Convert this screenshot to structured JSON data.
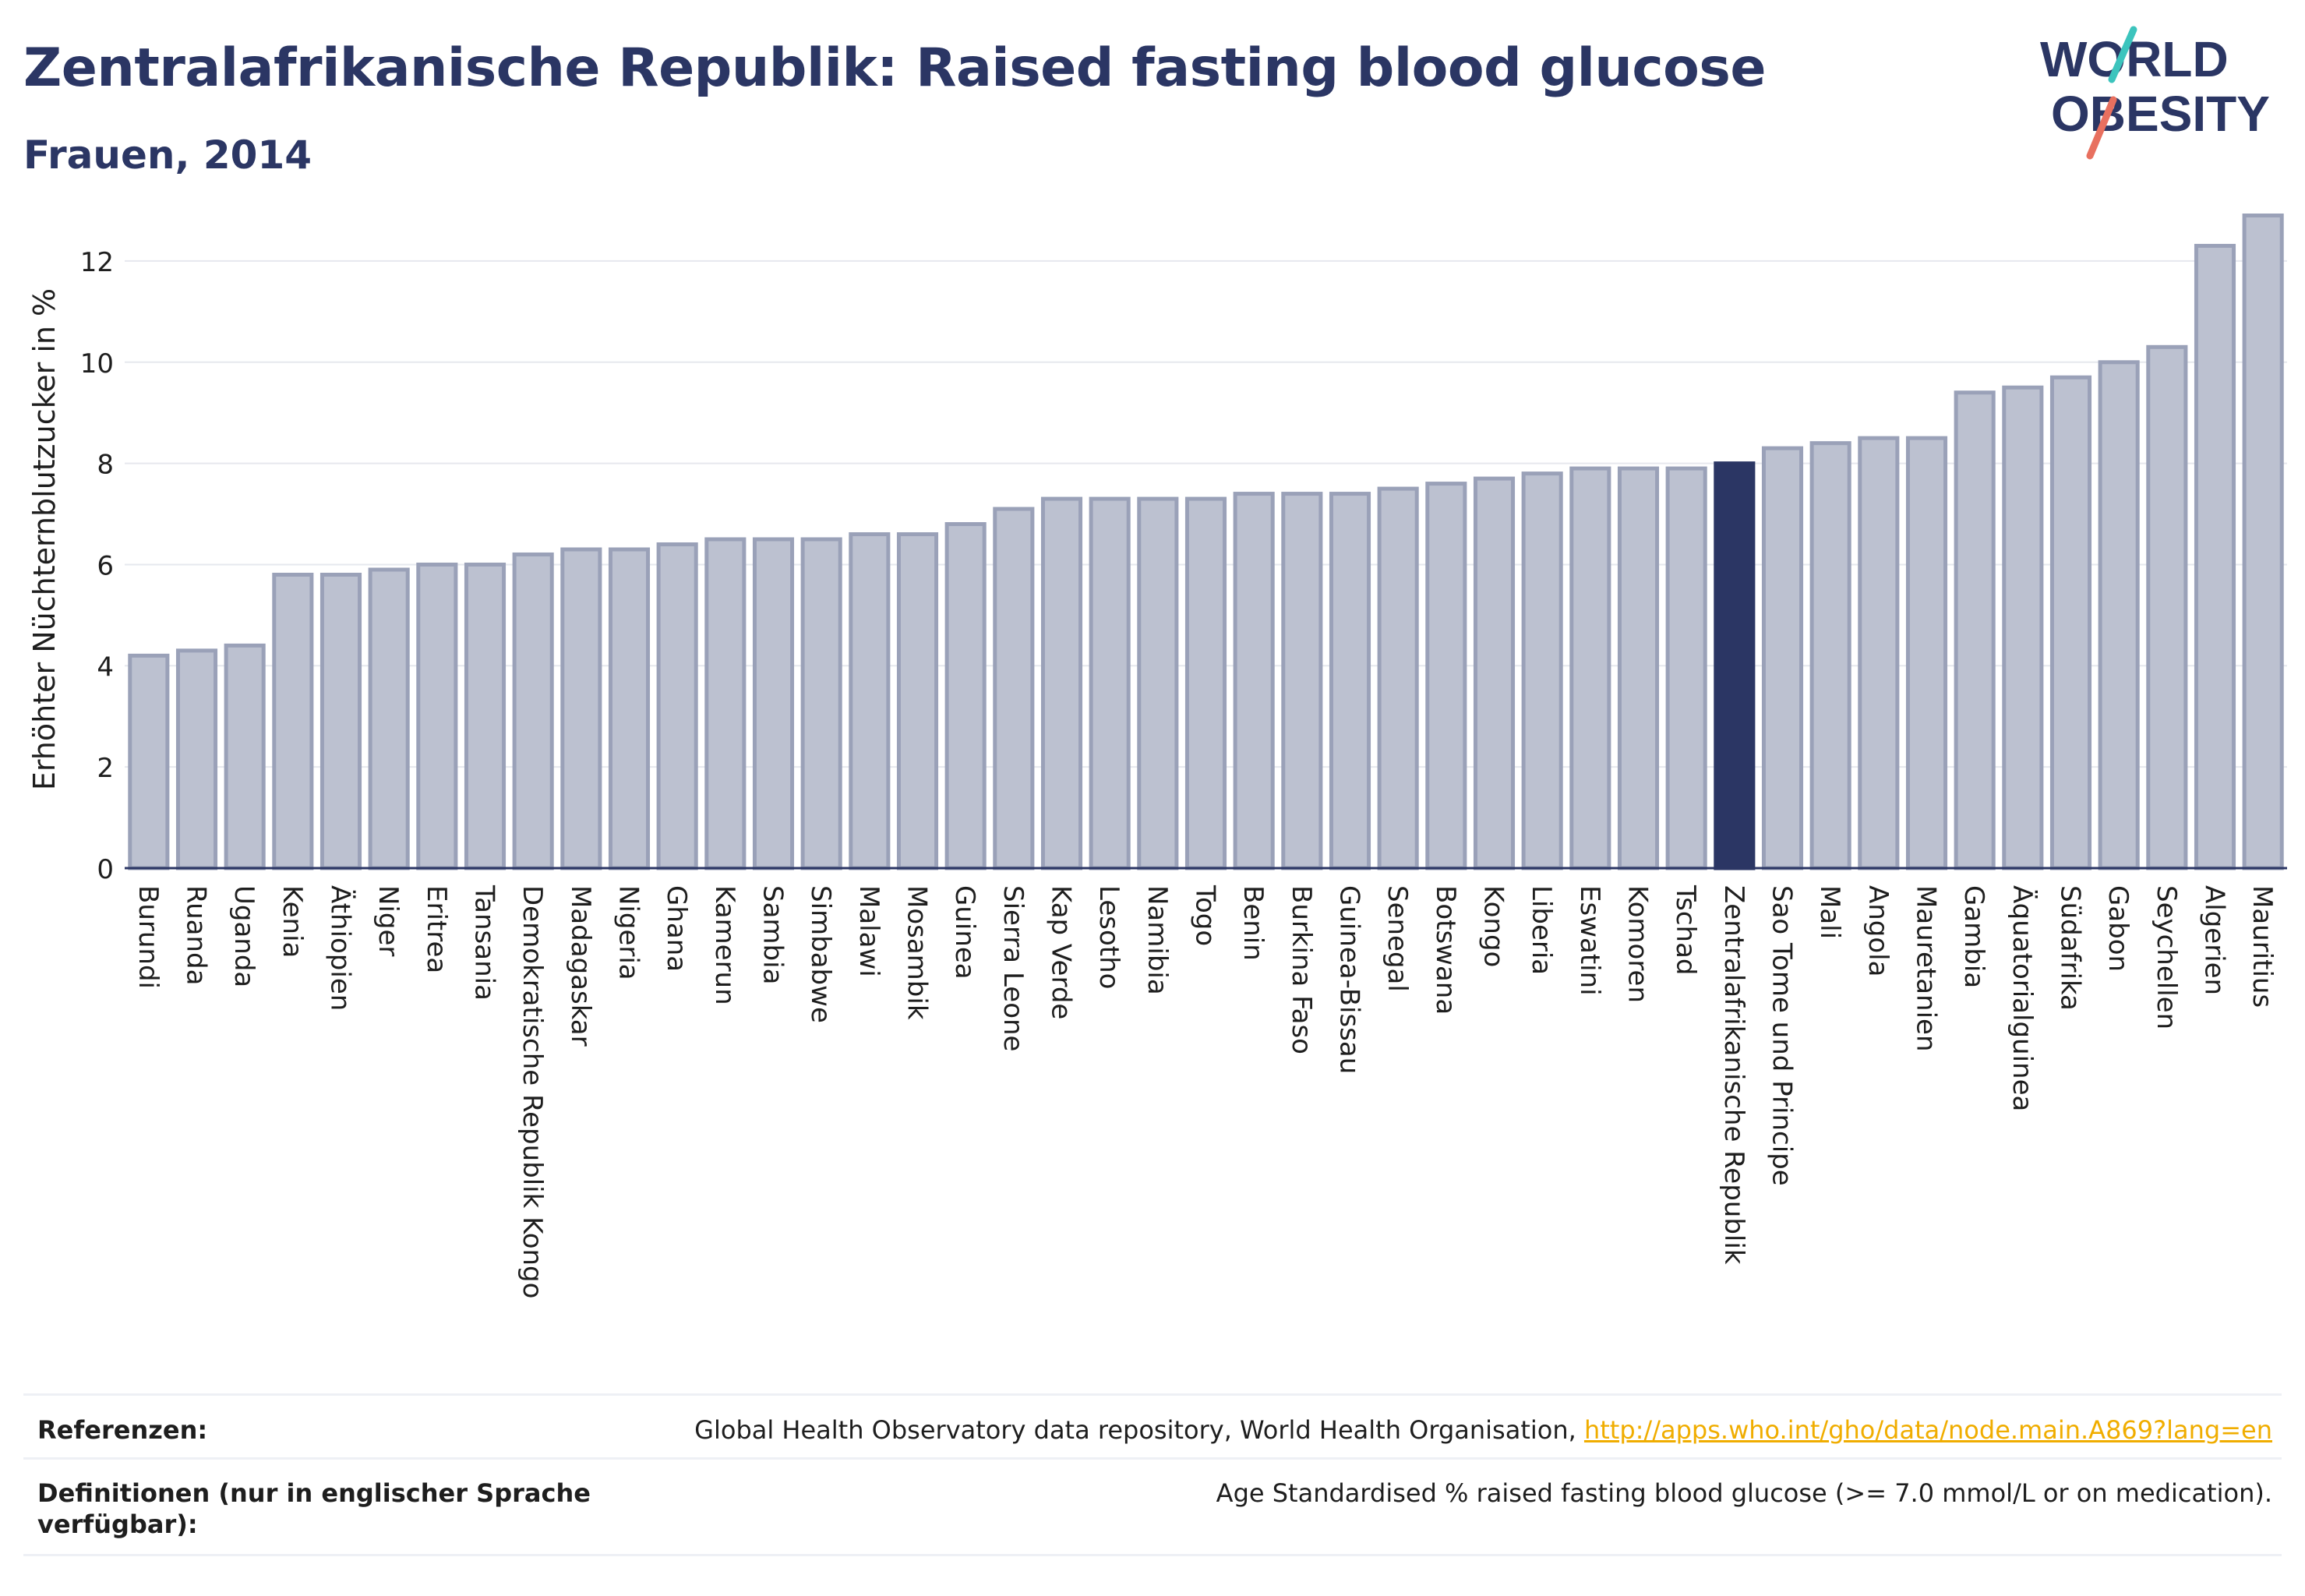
{
  "header": {
    "title": "Zentralafrikanische Republik: Raised fasting blood glucose",
    "subtitle": "Frauen, 2014"
  },
  "logo": {
    "line1": "WORLD",
    "line2": "OBESITY",
    "colors": {
      "text": "#2b3664",
      "slash_teal": "#3cc4bd",
      "slash_coral": "#e8705f"
    }
  },
  "chart_data": {
    "type": "bar",
    "ylabel": "Erhöhter Nüchternblutzucker in %",
    "xlabel": "",
    "ylim": [
      0,
      13
    ],
    "yticks": [
      0,
      2,
      4,
      6,
      8,
      10,
      12
    ],
    "grid": true,
    "highlight": "Zentralafrikanische Republik",
    "colors": {
      "bar": "#bcc1d0",
      "bar_edge": "#9aa1b8",
      "highlight": "#2b3664",
      "grid": "#e6e8ee",
      "axis": "#2b3664"
    },
    "categories": [
      "Burundi",
      "Ruanda",
      "Uganda",
      "Kenia",
      "Äthiopien",
      "Niger",
      "Eritrea",
      "Tansania",
      "Demokratische Republik Kongo",
      "Madagaskar",
      "Nigeria",
      "Ghana",
      "Kamerun",
      "Sambia",
      "Simbabwe",
      "Malawi",
      "Mosambik",
      "Guinea",
      "Sierra Leone",
      "Kap Verde",
      "Lesotho",
      "Namibia",
      "Togo",
      "Benin",
      "Burkina Faso",
      "Guinea-Bissau",
      "Senegal",
      "Botswana",
      "Kongo",
      "Liberia",
      "Eswatini",
      "Komoren",
      "Tschad",
      "Zentralafrikanische Republik",
      "Sao Tome und Principe",
      "Mali",
      "Angola",
      "Mauretanien",
      "Gambia",
      "Äquatorialguinea",
      "Südafrika",
      "Gabon",
      "Seychellen",
      "Algerien",
      "Mauritius"
    ],
    "values": [
      4.2,
      4.3,
      4.4,
      5.8,
      5.8,
      5.9,
      6.0,
      6.0,
      6.2,
      6.3,
      6.3,
      6.4,
      6.5,
      6.5,
      6.5,
      6.6,
      6.6,
      6.8,
      7.1,
      7.3,
      7.3,
      7.3,
      7.3,
      7.4,
      7.4,
      7.4,
      7.5,
      7.6,
      7.7,
      7.8,
      7.9,
      7.9,
      7.9,
      8.0,
      8.3,
      8.4,
      8.5,
      8.5,
      9.4,
      9.5,
      9.7,
      10.0,
      10.3,
      12.3,
      12.9
    ]
  },
  "references": {
    "label": "Referenzen:",
    "source": "Global Health Observatory data repository, World Health Organisation, ",
    "link": "http://apps.who.int/gho/data/node.main.A869?lang=en"
  },
  "definitions": {
    "label_line1": "Definitionen (nur in englischer Sprache",
    "label_line2": "verfügbar):",
    "text": "Age Standardised % raised fasting blood glucose (>= 7.0 mmol/L or on medication)."
  }
}
